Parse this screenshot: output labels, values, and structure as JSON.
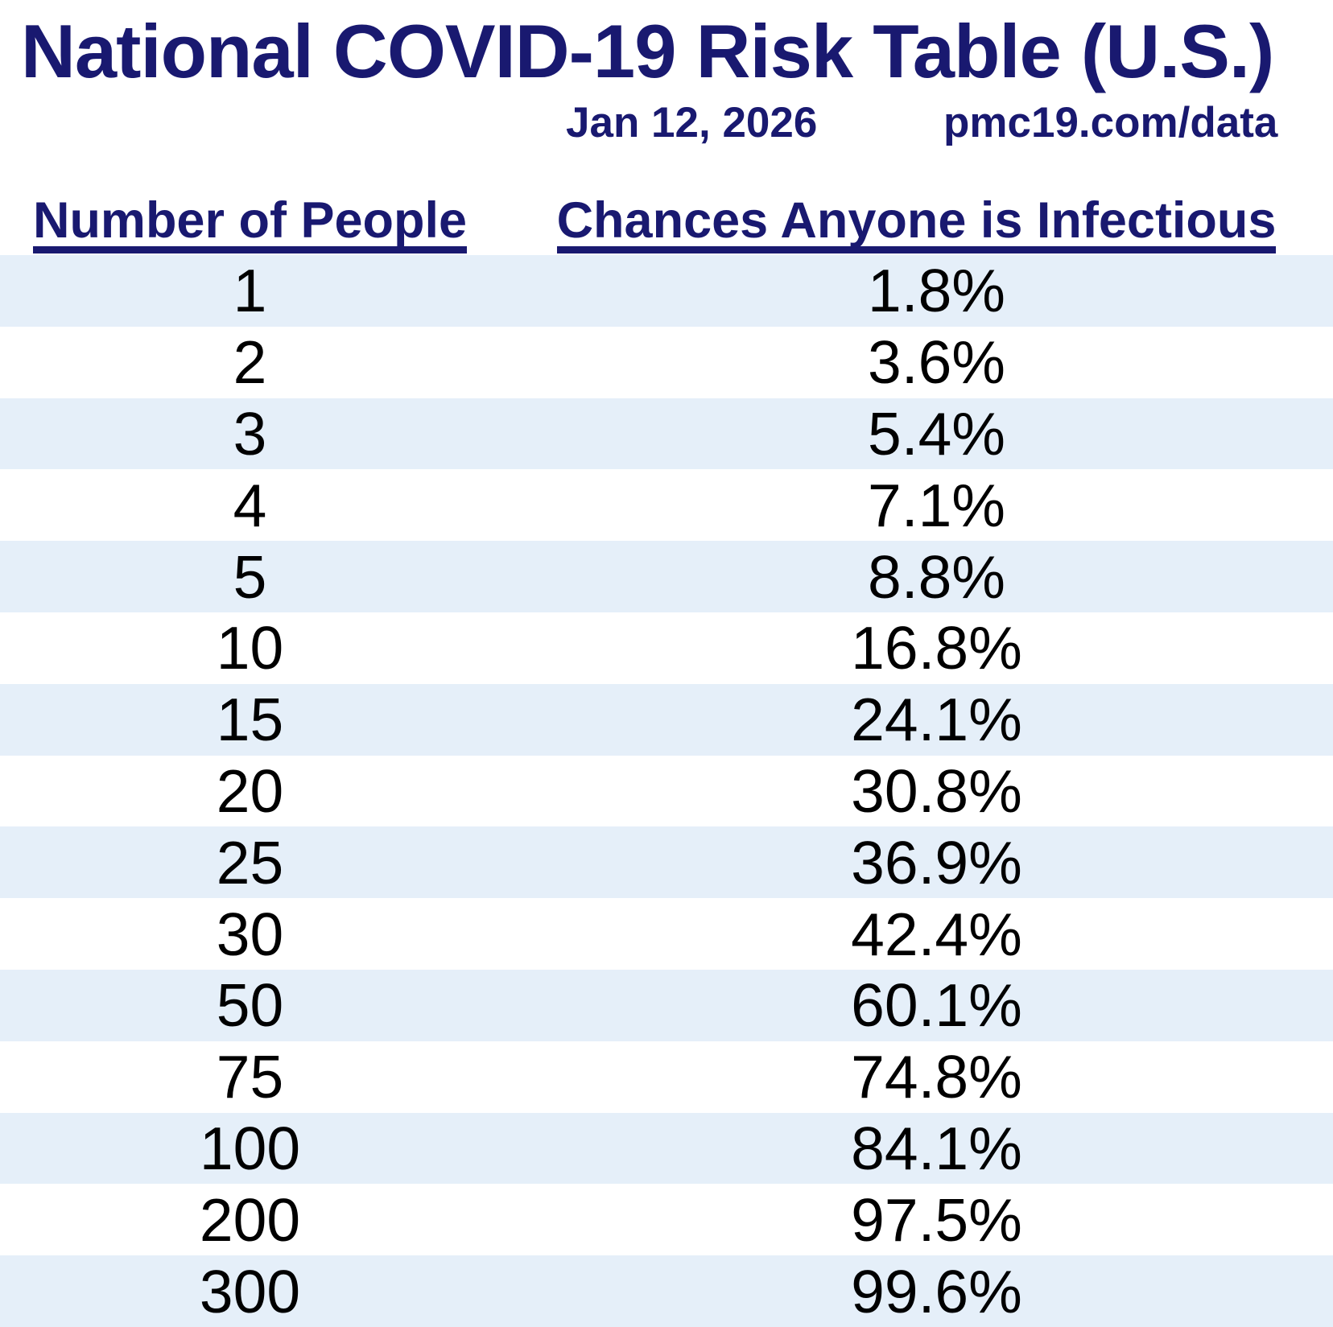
{
  "title": "National COVID-19 Risk Table (U.S.)",
  "date": "Jan 12, 2026",
  "source": "pmc19.com/data",
  "table": {
    "columns": [
      "Number of People",
      "Chances Anyone is Infectious"
    ],
    "rows": [
      {
        "people": "1",
        "chance": "1.8%"
      },
      {
        "people": "2",
        "chance": "3.6%"
      },
      {
        "people": "3",
        "chance": "5.4%"
      },
      {
        "people": "4",
        "chance": "7.1%"
      },
      {
        "people": "5",
        "chance": "8.8%"
      },
      {
        "people": "10",
        "chance": "16.8%"
      },
      {
        "people": "15",
        "chance": "24.1%"
      },
      {
        "people": "20",
        "chance": "30.8%"
      },
      {
        "people": "25",
        "chance": "36.9%"
      },
      {
        "people": "30",
        "chance": "42.4%"
      },
      {
        "people": "50",
        "chance": "60.1%"
      },
      {
        "people": "75",
        "chance": "74.8%"
      },
      {
        "people": "100",
        "chance": "84.1%"
      },
      {
        "people": "200",
        "chance": "97.5%"
      },
      {
        "people": "300",
        "chance": "99.6%"
      }
    ]
  },
  "chart_data": {
    "type": "table",
    "title": "National COVID-19 Risk Table (U.S.)",
    "subtitle_date": "Jan 12, 2026",
    "source": "pmc19.com/data",
    "columns": [
      "Number of People",
      "Chances Anyone is Infectious"
    ],
    "x": [
      1,
      2,
      3,
      4,
      5,
      10,
      15,
      20,
      25,
      30,
      50,
      75,
      100,
      200,
      300
    ],
    "values_percent": [
      1.8,
      3.6,
      5.4,
      7.1,
      8.8,
      16.8,
      24.1,
      30.8,
      36.9,
      42.4,
      60.1,
      74.8,
      84.1,
      97.5,
      99.6
    ],
    "layout_hints": {
      "striped_rows": true,
      "first_row_shaded": true,
      "header_underlined": true
    }
  },
  "colors": {
    "navy": "#191970",
    "stripe": "#e5eff9",
    "text": "#000000",
    "background": "#ffffff"
  }
}
